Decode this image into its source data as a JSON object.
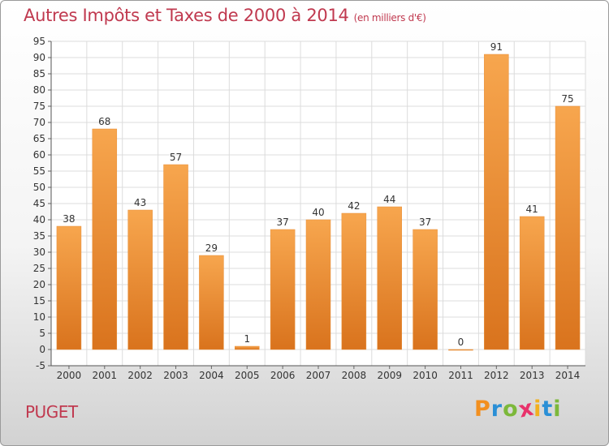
{
  "header": {
    "title": "Autres Impôts et Taxes de 2000 à 2014",
    "subtitle": "(en milliers d'€)"
  },
  "footer": {
    "commune": "PUGET",
    "logo": "Proxiti"
  },
  "colors": {
    "title": "#c0394f",
    "bar_light": "#f7a64e",
    "bar_dark": "#d9731d",
    "grid": "#dcdcdc",
    "logo_letters": [
      "#f28f1f",
      "#2a8fd6",
      "#7cb83a",
      "#e8326b",
      "#f2b01f",
      "#2a8fd6",
      "#7cb83a"
    ]
  },
  "chart_data": {
    "type": "bar",
    "categories": [
      "2000",
      "2001",
      "2002",
      "2003",
      "2004",
      "2005",
      "2006",
      "2007",
      "2008",
      "2009",
      "2010",
      "2011",
      "2012",
      "2013",
      "2014"
    ],
    "values": [
      38,
      68,
      43,
      57,
      29,
      1,
      37,
      40,
      42,
      44,
      37,
      0,
      91,
      41,
      75
    ],
    "ylim": [
      -5,
      95
    ],
    "yticks": [
      -5,
      0,
      5,
      10,
      15,
      20,
      25,
      30,
      35,
      40,
      45,
      50,
      55,
      60,
      65,
      70,
      75,
      80,
      85,
      90,
      95
    ],
    "grid": true,
    "data_labels": true
  }
}
